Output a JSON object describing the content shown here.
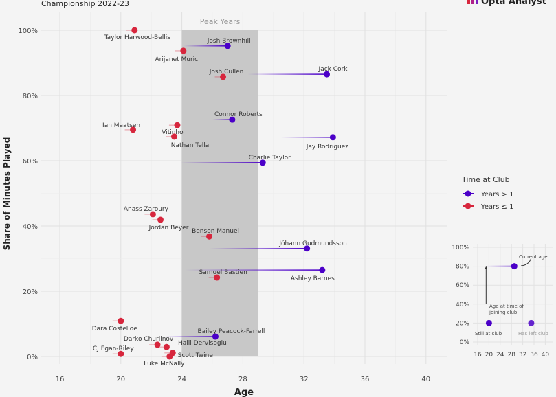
{
  "header": {
    "subtitle": "Championship 2022-23",
    "logo_text": "Opta Analyst"
  },
  "colors": {
    "years_gt_1": "#4b00c8",
    "years_le_1": "#d7263d",
    "peak_band": "#c8c8c8",
    "background": "#f4f4f4"
  },
  "chart_data": {
    "type": "scatter",
    "xlabel": "Age",
    "ylabel": "Share of Minutes Played",
    "xlim": [
      14.8,
      41
    ],
    "ylim": [
      0,
      100
    ],
    "x_ticks": [
      "16",
      "20",
      "24",
      "28",
      "32",
      "36",
      "40"
    ],
    "y_ticks": [
      "0%",
      "20%",
      "40%",
      "60%",
      "80%",
      "100%"
    ],
    "grid": true,
    "annotation_band": {
      "label": "Peak Years",
      "x_range": [
        24,
        29
      ]
    },
    "legend": {
      "title": "Time at Club",
      "placement": "right",
      "entries": [
        {
          "key": "gt1",
          "label": "Years > 1"
        },
        {
          "key": "le1",
          "label": "Years ≤ 1"
        }
      ]
    },
    "points": [
      {
        "name": "Taylor Harwood-Bellis",
        "age": 20.9,
        "share": 100,
        "group": "le1"
      },
      {
        "name": "Josh Brownhill",
        "age": 27.0,
        "share": 95.2,
        "join_age": 24.1,
        "group": "gt1"
      },
      {
        "name": "Arijanet Muric",
        "age": 24.1,
        "share": 93.7,
        "group": "le1"
      },
      {
        "name": "Jack Cork",
        "age": 33.5,
        "share": 86.5,
        "join_age": 28.3,
        "group": "gt1"
      },
      {
        "name": "Josh Cullen",
        "age": 26.7,
        "share": 85.7,
        "group": "le1"
      },
      {
        "name": "Connor Roberts",
        "age": 27.3,
        "share": 72.6,
        "join_age": 26.0,
        "group": "gt1"
      },
      {
        "name": "Vitinho",
        "age": 23.7,
        "share": 70.9,
        "group": "le1"
      },
      {
        "name": "Ian Maatsen",
        "age": 20.8,
        "share": 69.5,
        "group": "le1"
      },
      {
        "name": "Nathan Tella",
        "age": 23.5,
        "share": 67.4,
        "group": "le1"
      },
      {
        "name": "Jay Rodriguez",
        "age": 33.9,
        "share": 67.2,
        "join_age": 30.5,
        "group": "gt1"
      },
      {
        "name": "Charlie Taylor",
        "age": 29.3,
        "share": 59.4,
        "join_age": 23.9,
        "group": "gt1"
      },
      {
        "name": "Anass Zaroury",
        "age": 22.1,
        "share": 43.6,
        "group": "le1"
      },
      {
        "name": "Jordan Beyer",
        "age": 22.6,
        "share": 41.9,
        "group": "le1"
      },
      {
        "name": "Benson Manuel",
        "age": 25.8,
        "share": 36.8,
        "group": "le1"
      },
      {
        "name": "Jóhann Gudmundsson",
        "age": 32.2,
        "share": 33.1,
        "join_age": 25.8,
        "group": "gt1"
      },
      {
        "name": "Ashley Barnes",
        "age": 33.2,
        "share": 26.5,
        "join_age": 24.2,
        "group": "gt1"
      },
      {
        "name": "Samuel Bastien",
        "age": 26.3,
        "share": 24.2,
        "group": "le1"
      },
      {
        "name": "Dara Costelloe",
        "age": 20.0,
        "share": 10.9,
        "group": "le1"
      },
      {
        "name": "Bailey Peacock-Farrell",
        "age": 26.2,
        "share": 6.1,
        "join_age": 22.9,
        "group": "gt1"
      },
      {
        "name": "Darko Churlinov",
        "age": 22.4,
        "share": 3.6,
        "group": "le1"
      },
      {
        "name": "Halil Dervisoglu",
        "age": 23.0,
        "share": 2.9,
        "group": "le1"
      },
      {
        "name": "Scott Twine",
        "age": 23.4,
        "share": 1.1,
        "group": "le1"
      },
      {
        "name": "CJ Egan-Riley",
        "age": 20.0,
        "share": 0.8,
        "group": "le1"
      },
      {
        "name": "Luke McNally",
        "age": 23.2,
        "share": 0,
        "group": "le1"
      }
    ],
    "inset": {
      "x_ticks": [
        "16",
        "20",
        "24",
        "28",
        "32",
        "36",
        "40"
      ],
      "y_ticks": [
        "0%",
        "20%",
        "40%",
        "60%",
        "80%",
        "100%"
      ],
      "annotations": {
        "current_age": "Current age",
        "join_age": "Age at time of joining club",
        "still": "Still at club",
        "left": "Has left club"
      }
    }
  }
}
